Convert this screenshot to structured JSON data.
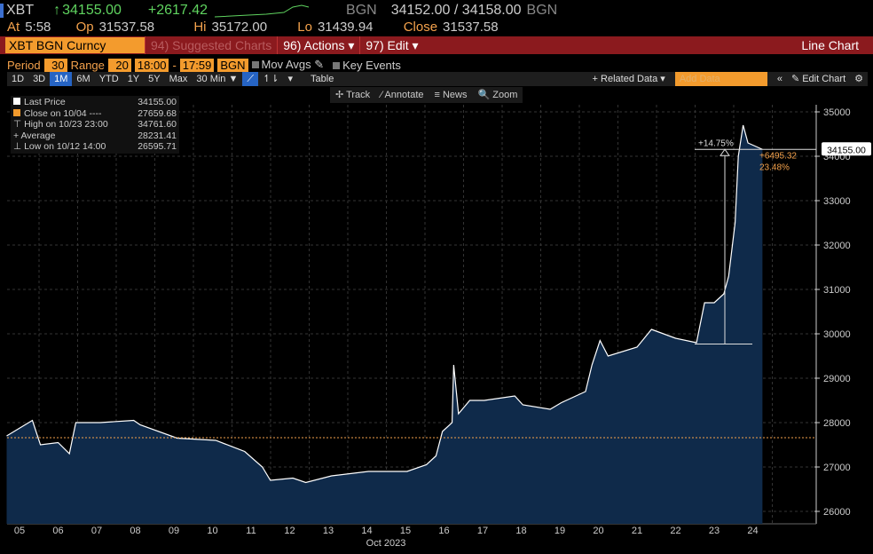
{
  "header": {
    "ticker": "XBT",
    "last": "34155.00",
    "change": "+2617.42",
    "source": "BGN",
    "bid_ask": "34152.00 / 34158.00",
    "source2": "BGN",
    "at_label": "At",
    "at": "5:58",
    "op_label": "Op",
    "op": "31537.58",
    "hi_label": "Hi",
    "hi": "35172.00",
    "lo_label": "Lo",
    "lo": "31439.94",
    "close_label": "Close",
    "close": "31537.58"
  },
  "menu": {
    "security": "XBT BGN Curncy",
    "suggested": "94) Suggested Charts",
    "actions": "96) Actions ▾",
    "edit": "97) Edit ▾",
    "chart_type": "Line Chart"
  },
  "params": {
    "period_label": "Period",
    "period": "30",
    "range_label": "Range",
    "range": "20",
    "start": "18:00",
    "dash": "-",
    "end": "17:59",
    "source": "BGN",
    "mov_avgs": "Mov Avgs",
    "key_events": "Key Events"
  },
  "toolbar": {
    "ranges": [
      "1D",
      "3D",
      "1M",
      "6M",
      "YTD",
      "1Y",
      "5Y",
      "Max"
    ],
    "selected": "1M",
    "interval": "30 Min ▼",
    "table": "Table",
    "related": "+ Related Data ▾",
    "add_data_placeholder": "Add Data",
    "edit_chart": "✎ Edit Chart",
    "collapse": "«",
    "gear": "⚙"
  },
  "subtools": {
    "track": "✢ Track",
    "annotate": "⁄ Annotate",
    "news": "≡ News",
    "zoom": "🔍 Zoom"
  },
  "legend": [
    {
      "label": "Last Price",
      "value": "34155.00"
    },
    {
      "label": "Close on 10/04 ----",
      "value": "27659.68"
    },
    {
      "label": "High on 10/23 23:00",
      "value": "34761.60"
    },
    {
      "label": "Average",
      "value": "28231.41"
    },
    {
      "label": "Low on 10/12 14:00",
      "value": "26595.71"
    }
  ],
  "colors": {
    "area": "#0f2a4a",
    "line": "#ffffff",
    "close_line": "#f4a24c",
    "accent": "#f39b2d",
    "bar": "#8b1a1e"
  },
  "annotations": {
    "pct": "+14.75%",
    "diff": "+6495.32",
    "diff_pct": "23.48%",
    "last_tag": "34155.00"
  },
  "chart_data": {
    "type": "area",
    "xlabel": "Oct 2023",
    "ylim": [
      25800,
      35300
    ],
    "y_ticks": [
      26000,
      27000,
      28000,
      29000,
      30000,
      31000,
      32000,
      33000,
      34000,
      35000
    ],
    "x_ticks": [
      "05",
      "06",
      "07",
      "08",
      "09",
      "10",
      "11",
      "12",
      "13",
      "14",
      "15",
      "16",
      "17",
      "18",
      "19",
      "20",
      "21",
      "22",
      "23",
      "24"
    ],
    "close_ref": 27659.68,
    "points": [
      [
        "10/04 16:00",
        27700
      ],
      [
        "10/05 08:00",
        28050
      ],
      [
        "10/05 13:00",
        27500
      ],
      [
        "10/06 00:00",
        27550
      ],
      [
        "10/06 07:00",
        27300
      ],
      [
        "10/06 11:00",
        28000
      ],
      [
        "10/07 02:00",
        28000
      ],
      [
        "10/07 23:00",
        28050
      ],
      [
        "10/08 03:00",
        27950
      ],
      [
        "10/09 02:00",
        27650
      ],
      [
        "10/10 02:00",
        27600
      ],
      [
        "10/10 20:00",
        27350
      ],
      [
        "10/11 07:00",
        27000
      ],
      [
        "10/11 12:00",
        26700
      ],
      [
        "10/12 02:00",
        26750
      ],
      [
        "10/12 10:00",
        26650
      ],
      [
        "10/13 02:00",
        26800
      ],
      [
        "10/14 01:00",
        26900
      ],
      [
        "10/15 01:00",
        26900
      ],
      [
        "10/15 13:00",
        27050
      ],
      [
        "10/15 19:00",
        27250
      ],
      [
        "10/15 23:00",
        27800
      ],
      [
        "10/16 05:00",
        28000
      ],
      [
        "10/16 06:00",
        29300
      ],
      [
        "10/16 09:00",
        28200
      ],
      [
        "10/16 16:00",
        28500
      ],
      [
        "10/17 01:00",
        28500
      ],
      [
        "10/17 20:00",
        28600
      ],
      [
        "10/18 01:00",
        28400
      ],
      [
        "10/18 18:00",
        28300
      ],
      [
        "10/19 01:00",
        28450
      ],
      [
        "10/19 16:00",
        28700
      ],
      [
        "10/19 20:00",
        29300
      ],
      [
        "10/20 01:00",
        29850
      ],
      [
        "10/20 06:00",
        29500
      ],
      [
        "10/21 00:00",
        29700
      ],
      [
        "10/21 09:00",
        30100
      ],
      [
        "10/22 00:00",
        29900
      ],
      [
        "10/22 13:00",
        29800
      ],
      [
        "10/22 18:00",
        30700
      ],
      [
        "10/23 00:00",
        30700
      ],
      [
        "10/23 06:00",
        30900
      ],
      [
        "10/23 09:00",
        31300
      ],
      [
        "10/23 13:00",
        32500
      ],
      [
        "10/23 15:00",
        34000
      ],
      [
        "10/23 18:00",
        34700
      ],
      [
        "10/23 21:00",
        34300
      ],
      [
        "10/24 06:00",
        34155
      ]
    ],
    "measure": {
      "from": 29770,
      "to": 34155
    }
  }
}
